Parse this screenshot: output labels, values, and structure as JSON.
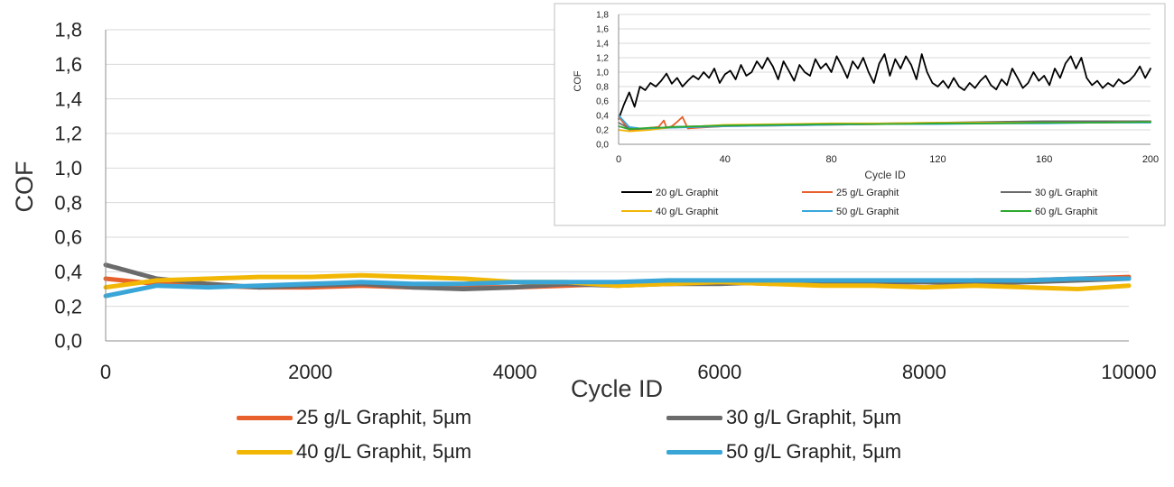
{
  "colors": {
    "g20": "#000000",
    "g25": "#e8602c",
    "g30": "#6b6b6b",
    "g40": "#f2b705",
    "g50": "#3aa6d8",
    "g60": "#2ea82e",
    "grid": "#d9d9d9",
    "axis": "#8c8c8c",
    "text": "#222222"
  },
  "chart_data": [
    {
      "id": "main",
      "type": "line",
      "xlabel": "Cycle ID",
      "ylabel": "COF",
      "xlim": [
        0,
        10000
      ],
      "ylim": [
        0,
        1.8
      ],
      "xticks": [
        0,
        2000,
        4000,
        6000,
        8000,
        10000
      ],
      "xtick_labels": [
        "0",
        "2000",
        "4000",
        "6000",
        "8000",
        "10000"
      ],
      "yticks": [
        0,
        0.2,
        0.4,
        0.6,
        0.8,
        1.0,
        1.2,
        1.4,
        1.6,
        1.8
      ],
      "ytick_labels": [
        "0,0",
        "0,2",
        "0,4",
        "0,6",
        "0,8",
        "1,0",
        "1,2",
        "1,4",
        "1,6",
        "1,8"
      ],
      "grid": "horizontal",
      "legend_position": "bottom",
      "series": [
        {
          "name": "25 g/L Graphit, 5µm",
          "color_key": "g25",
          "x": [
            0,
            500,
            1000,
            1500,
            2000,
            2500,
            3000,
            3500,
            4000,
            4500,
            5000,
            5500,
            6000,
            6500,
            7000,
            7500,
            8000,
            8500,
            9000,
            9500,
            10000
          ],
          "y": [
            0.36,
            0.33,
            0.32,
            0.31,
            0.31,
            0.32,
            0.31,
            0.31,
            0.31,
            0.32,
            0.33,
            0.33,
            0.34,
            0.33,
            0.34,
            0.34,
            0.34,
            0.35,
            0.35,
            0.36,
            0.37
          ]
        },
        {
          "name": "30 g/L Graphit, 5µm",
          "color_key": "g30",
          "x": [
            0,
            500,
            1000,
            1500,
            2000,
            2500,
            3000,
            3500,
            4000,
            4500,
            5000,
            5500,
            6000,
            6500,
            7000,
            7500,
            8000,
            8500,
            9000,
            9500,
            10000
          ],
          "y": [
            0.44,
            0.36,
            0.33,
            0.31,
            0.32,
            0.33,
            0.31,
            0.3,
            0.31,
            0.33,
            0.32,
            0.33,
            0.33,
            0.34,
            0.33,
            0.34,
            0.34,
            0.33,
            0.34,
            0.35,
            0.36
          ]
        },
        {
          "name": "40 g/L Graphit, 5µm",
          "color_key": "g40",
          "x": [
            0,
            500,
            1000,
            1500,
            2000,
            2500,
            3000,
            3500,
            4000,
            4500,
            5000,
            5500,
            6000,
            6500,
            7000,
            7500,
            8000,
            8500,
            9000,
            9500,
            10000
          ],
          "y": [
            0.31,
            0.35,
            0.36,
            0.37,
            0.37,
            0.38,
            0.37,
            0.36,
            0.34,
            0.34,
            0.32,
            0.33,
            0.34,
            0.33,
            0.32,
            0.32,
            0.31,
            0.32,
            0.31,
            0.3,
            0.32
          ]
        },
        {
          "name": "50 g/L Graphit, 5µm",
          "color_key": "g50",
          "x": [
            0,
            500,
            1000,
            1500,
            2000,
            2500,
            3000,
            3500,
            4000,
            4500,
            5000,
            5500,
            6000,
            6500,
            7000,
            7500,
            8000,
            8500,
            9000,
            9500,
            10000
          ],
          "y": [
            0.26,
            0.32,
            0.31,
            0.32,
            0.33,
            0.34,
            0.33,
            0.33,
            0.34,
            0.34,
            0.34,
            0.35,
            0.35,
            0.35,
            0.35,
            0.35,
            0.35,
            0.35,
            0.35,
            0.36,
            0.36
          ]
        }
      ]
    },
    {
      "id": "inset",
      "type": "line",
      "xlabel": "Cycle ID",
      "ylabel": "COF",
      "xlim": [
        0,
        200
      ],
      "ylim": [
        0,
        1.8
      ],
      "xticks": [
        0,
        40,
        80,
        120,
        160,
        200
      ],
      "xtick_labels": [
        "0",
        "40",
        "80",
        "120",
        "160",
        "200"
      ],
      "yticks": [
        0,
        0.2,
        0.4,
        0.6,
        0.8,
        1.0,
        1.2,
        1.4,
        1.6,
        1.8
      ],
      "ytick_labels": [
        "0,0",
        "0,2",
        "0,4",
        "0,6",
        "0,8",
        "1,0",
        "1,2",
        "1,4",
        "1,6",
        "1,8"
      ],
      "grid": "horizontal",
      "legend_position": "bottom",
      "series": [
        {
          "name": "20 g/L Graphit",
          "color_key": "g20",
          "x": [
            0,
            2,
            4,
            6,
            8,
            10,
            12,
            14,
            16,
            18,
            20,
            22,
            24,
            26,
            28,
            30,
            32,
            34,
            36,
            38,
            40,
            42,
            44,
            46,
            48,
            50,
            52,
            54,
            56,
            58,
            60,
            62,
            64,
            66,
            68,
            70,
            72,
            74,
            76,
            78,
            80,
            82,
            84,
            86,
            88,
            90,
            92,
            94,
            96,
            98,
            100,
            102,
            104,
            106,
            108,
            110,
            112,
            114,
            116,
            118,
            120,
            122,
            124,
            126,
            128,
            130,
            132,
            134,
            136,
            138,
            140,
            142,
            144,
            146,
            148,
            150,
            152,
            154,
            156,
            158,
            160,
            162,
            164,
            166,
            168,
            170,
            172,
            174,
            176,
            178,
            180,
            182,
            184,
            186,
            188,
            190,
            192,
            194,
            196,
            198,
            200
          ],
          "y": [
            0.35,
            0.55,
            0.72,
            0.52,
            0.8,
            0.75,
            0.85,
            0.8,
            0.88,
            0.98,
            0.84,
            0.92,
            0.8,
            0.88,
            0.95,
            0.9,
            1.0,
            0.92,
            1.05,
            0.85,
            0.97,
            1.02,
            0.9,
            1.1,
            0.95,
            1.0,
            1.15,
            1.05,
            1.2,
            1.08,
            0.9,
            1.15,
            1.02,
            0.88,
            1.1,
            1.0,
            0.95,
            1.18,
            1.05,
            1.12,
            1.0,
            1.22,
            1.08,
            0.92,
            1.15,
            1.05,
            1.2,
            1.0,
            0.85,
            1.12,
            1.25,
            0.95,
            1.18,
            1.05,
            1.22,
            1.1,
            0.9,
            1.25,
            1.0,
            0.85,
            0.8,
            0.88,
            0.78,
            0.92,
            0.8,
            0.75,
            0.85,
            0.78,
            0.88,
            0.95,
            0.82,
            0.76,
            0.9,
            0.82,
            1.05,
            0.92,
            0.78,
            0.85,
            1.0,
            0.88,
            0.95,
            0.82,
            1.05,
            0.92,
            1.12,
            1.22,
            1.05,
            1.2,
            0.92,
            0.82,
            0.88,
            0.78,
            0.85,
            0.8,
            0.9,
            0.84,
            0.88,
            0.96,
            1.08,
            0.92,
            1.05
          ]
        },
        {
          "name": "25 g/L Graphit",
          "color_key": "g25",
          "x": [
            0,
            4,
            8,
            12,
            15,
            17,
            18,
            20,
            22,
            24,
            26,
            30,
            40,
            60,
            80,
            100,
            120,
            140,
            160,
            180,
            200
          ],
          "y": [
            0.38,
            0.2,
            0.21,
            0.23,
            0.24,
            0.33,
            0.23,
            0.25,
            0.31,
            0.38,
            0.22,
            0.23,
            0.25,
            0.26,
            0.27,
            0.28,
            0.29,
            0.3,
            0.31,
            0.31,
            0.32
          ]
        },
        {
          "name": "30 g/L Graphit",
          "color_key": "g30",
          "x": [
            0,
            4,
            8,
            12,
            16,
            20,
            30,
            40,
            60,
            80,
            100,
            120,
            140,
            160,
            180,
            200
          ],
          "y": [
            0.3,
            0.22,
            0.21,
            0.22,
            0.23,
            0.24,
            0.25,
            0.26,
            0.27,
            0.28,
            0.29,
            0.3,
            0.31,
            0.32,
            0.32,
            0.32
          ]
        },
        {
          "name": "40 g/L Graphit",
          "color_key": "g40",
          "x": [
            0,
            4,
            8,
            12,
            16,
            20,
            30,
            40,
            60,
            80,
            100,
            120,
            140,
            160,
            180,
            200
          ],
          "y": [
            0.2,
            0.18,
            0.19,
            0.2,
            0.22,
            0.23,
            0.25,
            0.27,
            0.28,
            0.29,
            0.29,
            0.3,
            0.3,
            0.3,
            0.3,
            0.31
          ]
        },
        {
          "name": "50 g/L Graphit",
          "color_key": "g50",
          "x": [
            0,
            4,
            8,
            12,
            16,
            20,
            30,
            40,
            60,
            80,
            100,
            120,
            140,
            160,
            180,
            200
          ],
          "y": [
            0.4,
            0.24,
            0.22,
            0.22,
            0.23,
            0.23,
            0.24,
            0.25,
            0.26,
            0.27,
            0.28,
            0.28,
            0.29,
            0.29,
            0.3,
            0.3
          ]
        },
        {
          "name": "60 g/L Graphit",
          "color_key": "g60",
          "x": [
            0,
            4,
            8,
            12,
            16,
            20,
            30,
            40,
            60,
            80,
            100,
            120,
            140,
            160,
            180,
            200
          ],
          "y": [
            0.25,
            0.21,
            0.22,
            0.23,
            0.23,
            0.24,
            0.25,
            0.26,
            0.27,
            0.28,
            0.28,
            0.29,
            0.29,
            0.3,
            0.3,
            0.31
          ]
        }
      ]
    }
  ]
}
